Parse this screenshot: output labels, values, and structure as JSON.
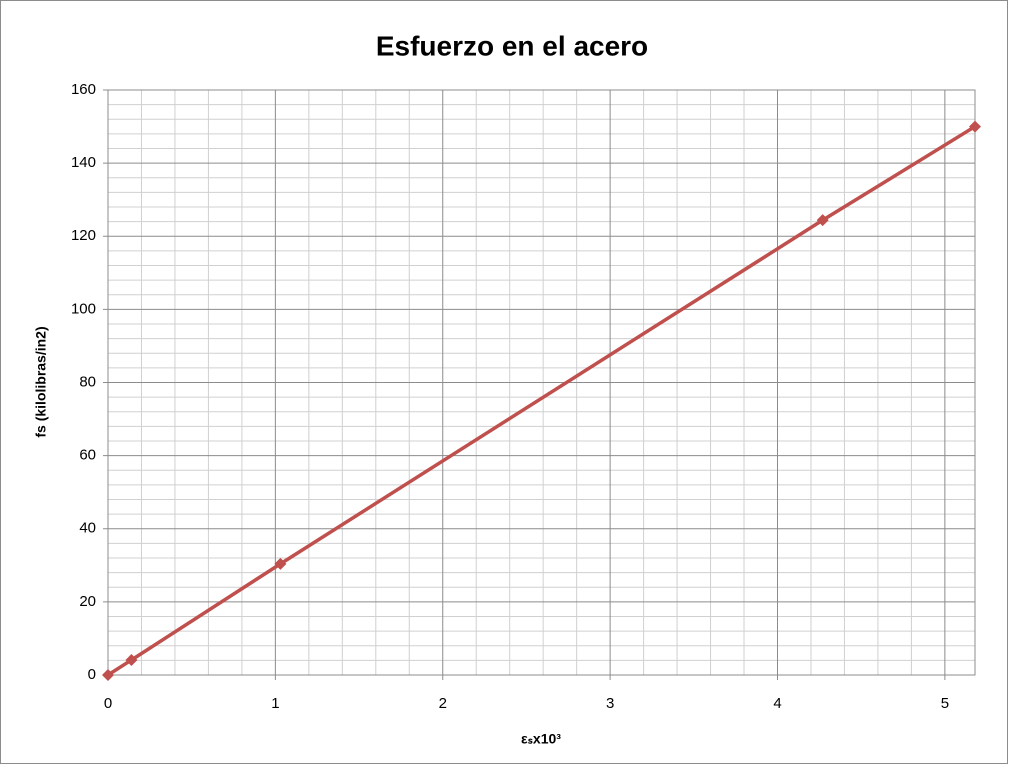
{
  "chart_data": {
    "type": "line",
    "title": "Esfuerzo en el acero",
    "x_label": "εₛx10³",
    "y_label": "fs  (kilolibras/in2)",
    "x": [
      0,
      0.14,
      1.03,
      4.27,
      5.18
    ],
    "series": [
      {
        "name": "fs",
        "color": "#c0504d",
        "values": [
          0,
          4.1,
          30.4,
          124.4,
          150
        ]
      }
    ],
    "xlim": [
      0,
      5.18
    ],
    "xticks": [
      0,
      1,
      2,
      3,
      4,
      5
    ],
    "ylim": [
      0,
      160
    ],
    "yticks": [
      0,
      20,
      40,
      60,
      80,
      100,
      120,
      140,
      160
    ],
    "grid": true,
    "minor_grid": true,
    "legend": false
  }
}
